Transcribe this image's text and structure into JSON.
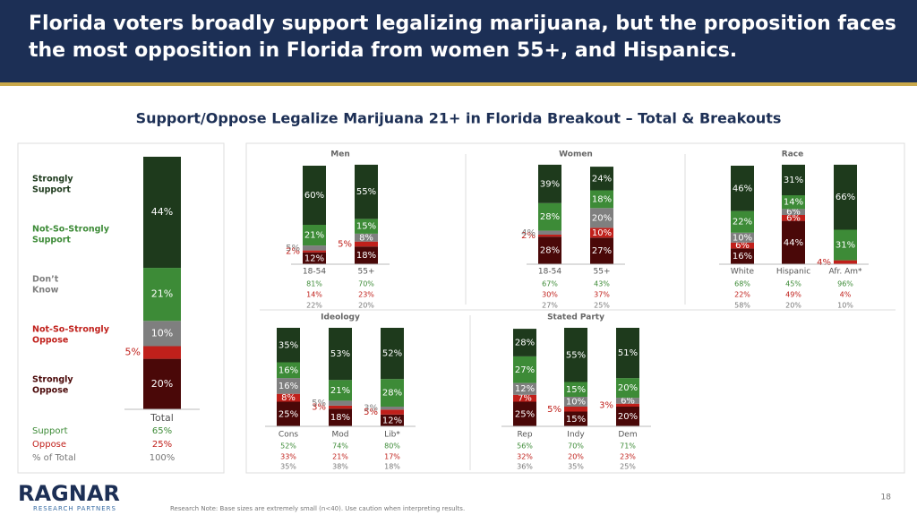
{
  "header": {
    "title": [
      "Florida voters broadly support legalizing marijuana, but the proposition faces",
      "the most opposition in Florida from women 55+, and Hispanics."
    ]
  },
  "subtitle": "Support/Oppose Legalize Marijuana 21+ in Florida Breakout – Total & Breakouts",
  "chart_data": [
    {
      "type": "stacked-bar",
      "categories": [
        "Total"
      ],
      "ylim": [
        0,
        100
      ],
      "series": [
        {
          "name": "Strongly Support",
          "color": "#1e3a1c",
          "values": [
            44
          ],
          "value_labels": [
            "44%"
          ]
        },
        {
          "name": "Not-So-Strongly Support",
          "color": "#3d8b37",
          "values": [
            21
          ],
          "value_labels": [
            "21%"
          ]
        },
        {
          "name": "Don’t Know",
          "color": "#7f7f7f",
          "values": [
            10
          ],
          "value_labels": [
            "10%"
          ]
        },
        {
          "name": "Not-So-Strongly Oppose",
          "color": "#c0201b",
          "values": [
            5
          ],
          "value_labels": [
            "5%"
          ]
        },
        {
          "name": "Strongly Oppose",
          "color": "#4a0808",
          "values": [
            20
          ],
          "value_labels": [
            "20%"
          ]
        }
      ],
      "rows": [
        {
          "name": "Support",
          "color": "#3d8b37",
          "values": [
            65
          ],
          "value_labels": [
            "65%"
          ]
        },
        {
          "name": "Oppose",
          "color": "#c0201b",
          "values": [
            25
          ],
          "value_labels": [
            "25%"
          ]
        },
        {
          "name": "% of Total",
          "color": "#777777",
          "values": [
            100
          ],
          "value_labels": [
            "100%"
          ]
        }
      ]
    },
    {
      "type": "stacked-bar",
      "title": "Men",
      "categories": [
        "18-54",
        "55+"
      ],
      "ylim": [
        0,
        100
      ],
      "series": [
        {
          "color": "#1e3a1c",
          "values": [
            60,
            55
          ],
          "value_labels": [
            "60%",
            "55%"
          ]
        },
        {
          "color": "#3d8b37",
          "values": [
            21,
            15
          ],
          "value_labels": [
            "21%",
            "15%"
          ]
        },
        {
          "color": "#7f7f7f",
          "values": [
            5,
            8
          ],
          "value_labels": [
            "5%",
            "8%"
          ]
        },
        {
          "color": "#c0201b",
          "values": [
            2,
            5
          ],
          "value_labels": [
            "2%",
            "5%"
          ]
        },
        {
          "color": "#4a0808",
          "values": [
            12,
            18
          ],
          "value_labels": [
            "12%",
            "18%"
          ]
        }
      ],
      "rows": [
        {
          "color": "#3d8b37",
          "values": [
            81,
            70
          ],
          "value_labels": [
            "81%",
            "70%"
          ]
        },
        {
          "color": "#c0201b",
          "values": [
            14,
            23
          ],
          "value_labels": [
            "14%",
            "23%"
          ]
        },
        {
          "color": "#777777",
          "values": [
            22,
            20
          ],
          "value_labels": [
            "22%",
            "20%"
          ]
        }
      ]
    },
    {
      "type": "stacked-bar",
      "title": "Women",
      "categories": [
        "18-54",
        "55+"
      ],
      "ylim": [
        0,
        100
      ],
      "series": [
        {
          "color": "#1e3a1c",
          "values": [
            39,
            24
          ],
          "value_labels": [
            "39%",
            "24%"
          ]
        },
        {
          "color": "#3d8b37",
          "values": [
            28,
            18
          ],
          "value_labels": [
            "28%",
            "18%"
          ]
        },
        {
          "color": "#7f7f7f",
          "values": [
            4,
            20
          ],
          "value_labels": [
            "4%",
            "20%"
          ]
        },
        {
          "color": "#c0201b",
          "values": [
            2,
            10
          ],
          "value_labels": [
            "2%",
            "10%"
          ]
        },
        {
          "color": "#4a0808",
          "values": [
            28,
            27
          ],
          "value_labels": [
            "28%",
            "27%"
          ]
        }
      ],
      "rows": [
        {
          "color": "#3d8b37",
          "values": [
            67,
            43
          ],
          "value_labels": [
            "67%",
            "43%"
          ]
        },
        {
          "color": "#c0201b",
          "values": [
            30,
            37
          ],
          "value_labels": [
            "30%",
            "37%"
          ]
        },
        {
          "color": "#777777",
          "values": [
            27,
            25
          ],
          "value_labels": [
            "27%",
            "25%"
          ]
        }
      ]
    },
    {
      "type": "stacked-bar",
      "title": "Race",
      "categories": [
        "White",
        "Hispanic",
        "Afr. Am*"
      ],
      "ylim": [
        0,
        100
      ],
      "series": [
        {
          "color": "#1e3a1c",
          "values": [
            46,
            31,
            66
          ],
          "value_labels": [
            "46%",
            "31%",
            "66%"
          ]
        },
        {
          "color": "#3d8b37",
          "values": [
            22,
            14,
            31
          ],
          "value_labels": [
            "22%",
            "14%",
            "31%"
          ]
        },
        {
          "color": "#7f7f7f",
          "values": [
            10,
            6,
            0
          ],
          "value_labels": [
            "10%",
            "6%",
            null
          ]
        },
        {
          "color": "#c0201b",
          "values": [
            6,
            6,
            4
          ],
          "value_labels": [
            "6%",
            "6%",
            "4%"
          ]
        },
        {
          "color": "#4a0808",
          "values": [
            16,
            44,
            0
          ],
          "value_labels": [
            "16%",
            "44%",
            null
          ]
        }
      ],
      "rows": [
        {
          "color": "#3d8b37",
          "values": [
            68,
            45,
            96
          ],
          "value_labels": [
            "68%",
            "45%",
            "96%"
          ]
        },
        {
          "color": "#c0201b",
          "values": [
            22,
            49,
            4
          ],
          "value_labels": [
            "22%",
            "49%",
            "4%"
          ]
        },
        {
          "color": "#777777",
          "values": [
            58,
            20,
            10
          ],
          "value_labels": [
            "58%",
            "20%",
            "10%"
          ]
        }
      ]
    },
    {
      "type": "stacked-bar",
      "title": "Ideology",
      "categories": [
        "Cons",
        "Mod",
        "Lib*"
      ],
      "ylim": [
        0,
        100
      ],
      "series": [
        {
          "color": "#1e3a1c",
          "values": [
            35,
            53,
            52
          ],
          "value_labels": [
            "35%",
            "53%",
            "52%"
          ]
        },
        {
          "color": "#3d8b37",
          "values": [
            16,
            21,
            28
          ],
          "value_labels": [
            "16%",
            "21%",
            "28%"
          ]
        },
        {
          "color": "#7f7f7f",
          "values": [
            16,
            5,
            3
          ],
          "value_labels": [
            "16%",
            "5%",
            "3%"
          ]
        },
        {
          "color": "#c0201b",
          "values": [
            8,
            3,
            5
          ],
          "value_labels": [
            "8%",
            "3%",
            "5%"
          ]
        },
        {
          "color": "#4a0808",
          "values": [
            25,
            18,
            12
          ],
          "value_labels": [
            "25%",
            "18%",
            "12%"
          ]
        }
      ],
      "rows": [
        {
          "color": "#3d8b37",
          "values": [
            52,
            74,
            80
          ],
          "value_labels": [
            "52%",
            "74%",
            "80%"
          ]
        },
        {
          "color": "#c0201b",
          "values": [
            33,
            21,
            17
          ],
          "value_labels": [
            "33%",
            "21%",
            "17%"
          ]
        },
        {
          "color": "#777777",
          "values": [
            35,
            38,
            18
          ],
          "value_labels": [
            "35%",
            "38%",
            "18%"
          ]
        }
      ]
    },
    {
      "type": "stacked-bar",
      "title": "Stated Party",
      "categories": [
        "Rep",
        "Indy",
        "Dem"
      ],
      "ylim": [
        0,
        100
      ],
      "series": [
        {
          "color": "#1e3a1c",
          "values": [
            28,
            55,
            51
          ],
          "value_labels": [
            "28%",
            "55%",
            "51%"
          ]
        },
        {
          "color": "#3d8b37",
          "values": [
            27,
            15,
            20
          ],
          "value_labels": [
            "27%",
            "15%",
            "20%"
          ]
        },
        {
          "color": "#7f7f7f",
          "values": [
            12,
            10,
            6
          ],
          "value_labels": [
            "12%",
            "10%",
            "6%"
          ]
        },
        {
          "color": "#c0201b",
          "values": [
            7,
            5,
            3
          ],
          "value_labels": [
            "7%",
            "5%",
            "3%"
          ]
        },
        {
          "color": "#4a0808",
          "values": [
            25,
            15,
            20
          ],
          "value_labels": [
            "25%",
            "15%",
            "20%"
          ]
        }
      ],
      "rows": [
        {
          "color": "#3d8b37",
          "values": [
            56,
            70,
            71
          ],
          "value_labels": [
            "56%",
            "70%",
            "71%"
          ]
        },
        {
          "color": "#c0201b",
          "values": [
            32,
            20,
            23
          ],
          "value_labels": [
            "32%",
            "20%",
            "23%"
          ]
        },
        {
          "color": "#777777",
          "values": [
            36,
            35,
            25
          ],
          "value_labels": [
            "36%",
            "35%",
            "25%"
          ]
        }
      ]
    }
  ],
  "footer": {
    "logo": "RAGNAR",
    "logo_sub": "RESEARCH PARTNERS",
    "note": "Research Note: Base sizes are extremely small (n<40). Use caution when interpreting results.",
    "page": "18"
  }
}
